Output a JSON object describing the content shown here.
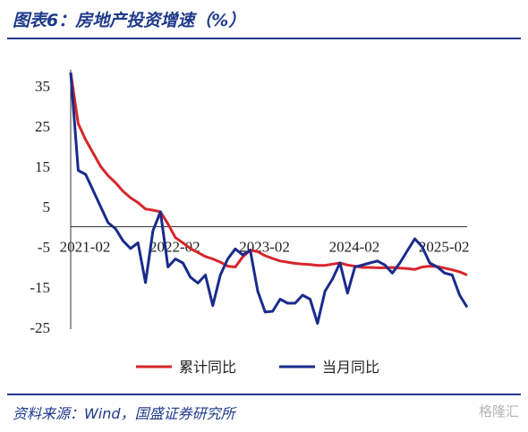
{
  "header": {
    "title": "图表6：房地产投资增速（%）"
  },
  "footer": {
    "source": "资料来源：Wind，国盛证券研究所",
    "watermark": "格隆汇"
  },
  "chart_data": {
    "type": "line",
    "yticks": [
      "35",
      "25",
      "15",
      "5",
      "-5",
      "-15",
      "-25"
    ],
    "ylim": [
      -25,
      35
    ],
    "xtick_labels": [
      "2021-02",
      "2022-02",
      "2023-02",
      "2024-02",
      "2025-02"
    ],
    "grid": false,
    "legend_position": "bottom",
    "series": [
      {
        "name": "累计同比",
        "color": "#d7262b",
        "x": [
          "2021-02",
          "2021-03",
          "2021-04",
          "2021-05",
          "2021-06",
          "2021-07",
          "2021-08",
          "2021-09",
          "2021-10",
          "2021-11",
          "2021-12",
          "2022-01",
          "2022-02",
          "2022-03",
          "2022-04",
          "2022-05",
          "2022-06",
          "2022-07",
          "2022-08",
          "2022-09",
          "2022-10",
          "2022-11",
          "2022-12",
          "2023-01",
          "2023-02",
          "2023-03",
          "2023-04",
          "2023-05",
          "2023-06",
          "2023-07",
          "2023-08",
          "2023-09",
          "2023-10",
          "2023-11",
          "2023-12",
          "2024-01",
          "2024-02",
          "2024-03",
          "2024-04",
          "2024-05",
          "2024-06",
          "2024-07",
          "2024-08",
          "2024-09",
          "2024-10",
          "2024-11",
          "2024-12",
          "2025-01",
          "2025-02",
          "2025-03",
          "2025-04",
          "2025-05",
          "2025-06",
          "2025-07"
        ],
        "values": [
          38.3,
          25.6,
          21.6,
          18.3,
          15.0,
          12.7,
          10.9,
          8.8,
          7.2,
          6.0,
          4.4,
          4.1,
          3.7,
          0.7,
          -2.7,
          -4.0,
          -5.4,
          -6.4,
          -7.4,
          -8.0,
          -8.8,
          -9.8,
          -10.0,
          -7.5,
          -5.8,
          -6.2,
          -7.2,
          -7.9,
          -8.5,
          -8.8,
          -9.1,
          -9.3,
          -9.4,
          -9.6,
          -9.6,
          -9.3,
          -9.0,
          -9.5,
          -9.8,
          -10.1,
          -10.1,
          -10.2,
          -10.2,
          -10.1,
          -10.3,
          -10.4,
          -10.6,
          -10.0,
          -9.8,
          -9.9,
          -10.3,
          -10.7,
          -11.2,
          -12.0
        ]
      },
      {
        "name": "当月同比",
        "color": "#1a2b8c",
        "x": [
          "2021-02",
          "2021-03",
          "2021-04",
          "2021-05",
          "2021-06",
          "2021-07",
          "2021-08",
          "2021-09",
          "2021-10",
          "2021-11",
          "2021-12",
          "2022-01",
          "2022-02",
          "2022-03",
          "2022-04",
          "2022-05",
          "2022-06",
          "2022-07",
          "2022-08",
          "2022-09",
          "2022-10",
          "2022-11",
          "2022-12",
          "2023-01",
          "2023-02",
          "2023-03",
          "2023-04",
          "2023-05",
          "2023-06",
          "2023-07",
          "2023-08",
          "2023-09",
          "2023-10",
          "2023-11",
          "2023-12",
          "2024-01",
          "2024-02",
          "2024-03",
          "2024-04",
          "2024-05",
          "2024-06",
          "2024-07",
          "2024-08",
          "2024-09",
          "2024-10",
          "2024-11",
          "2024-12",
          "2025-01",
          "2025-02",
          "2025-03",
          "2025-04",
          "2025-05",
          "2025-06",
          "2025-07"
        ],
        "values": [
          38.3,
          14.0,
          13.0,
          9.0,
          5.0,
          1.0,
          -0.5,
          -3.5,
          -5.4,
          -4.0,
          -13.9,
          -1.0,
          3.7,
          -10.0,
          -8.0,
          -9.0,
          -12.5,
          -14.0,
          -12.0,
          -19.6,
          -12.0,
          -8.0,
          -5.5,
          -7.0,
          -5.8,
          -16.0,
          -21.2,
          -21.0,
          -18.0,
          -19.0,
          -19.0,
          -17.0,
          -18.0,
          -24.0,
          -16.0,
          -13.0,
          -9.0,
          -16.5,
          -10.0,
          -9.5,
          -9.0,
          -8.5,
          -9.5,
          -11.5,
          -9.0,
          -6.0,
          -3.0,
          -5.0,
          -9.0,
          -10.0,
          -11.5,
          -12.0,
          -17.0,
          -20.0
        ]
      }
    ]
  }
}
